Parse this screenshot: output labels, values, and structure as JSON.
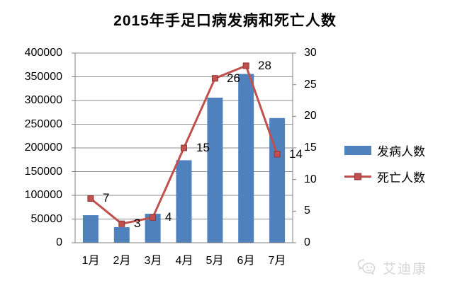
{
  "title": "2015年手足口病发病和死亡人数",
  "colors": {
    "bar": "#4F81BD",
    "line": "#C0504D",
    "marker_edge": "#943634",
    "grid": "#8E8E8E",
    "axis": "#808080",
    "text": "#000000",
    "watermark": "#D6D6D6",
    "background": "#FFFFFF"
  },
  "chart_data": {
    "type": "combo-bar-line",
    "title": "2015年手足口病发病和死亡人数",
    "categories": [
      "1月",
      "2月",
      "3月",
      "4月",
      "5月",
      "6月",
      "7月"
    ],
    "series": [
      {
        "name": "发病人数",
        "type": "bar",
        "axis": "left",
        "color": "#4F81BD",
        "values": [
          58000,
          33000,
          61000,
          174000,
          306000,
          356000,
          263000
        ]
      },
      {
        "name": "死亡人数",
        "type": "line",
        "axis": "right",
        "color": "#C0504D",
        "marker": "square",
        "values": [
          7,
          3,
          4,
          15,
          26,
          28,
          14
        ],
        "data_labels": [
          "7",
          "3",
          "4",
          "15",
          "26",
          "28",
          "14"
        ]
      }
    ],
    "left_axis": {
      "min": 0,
      "max": 400000,
      "step": 50000,
      "tick_labels": [
        "0",
        "50000",
        "100000",
        "150000",
        "200000",
        "250000",
        "300000",
        "350000",
        "400000"
      ]
    },
    "right_axis": {
      "min": 0,
      "max": 30,
      "step": 5,
      "tick_labels": [
        "0",
        "5",
        "10",
        "15",
        "20",
        "25",
        "30"
      ]
    },
    "grid": true,
    "legend_position": "right"
  },
  "legend": {
    "bar_label": "发病人数",
    "line_label": "死亡人数"
  },
  "watermark": {
    "icon": "wechat-icon",
    "text": "艾迪康"
  }
}
